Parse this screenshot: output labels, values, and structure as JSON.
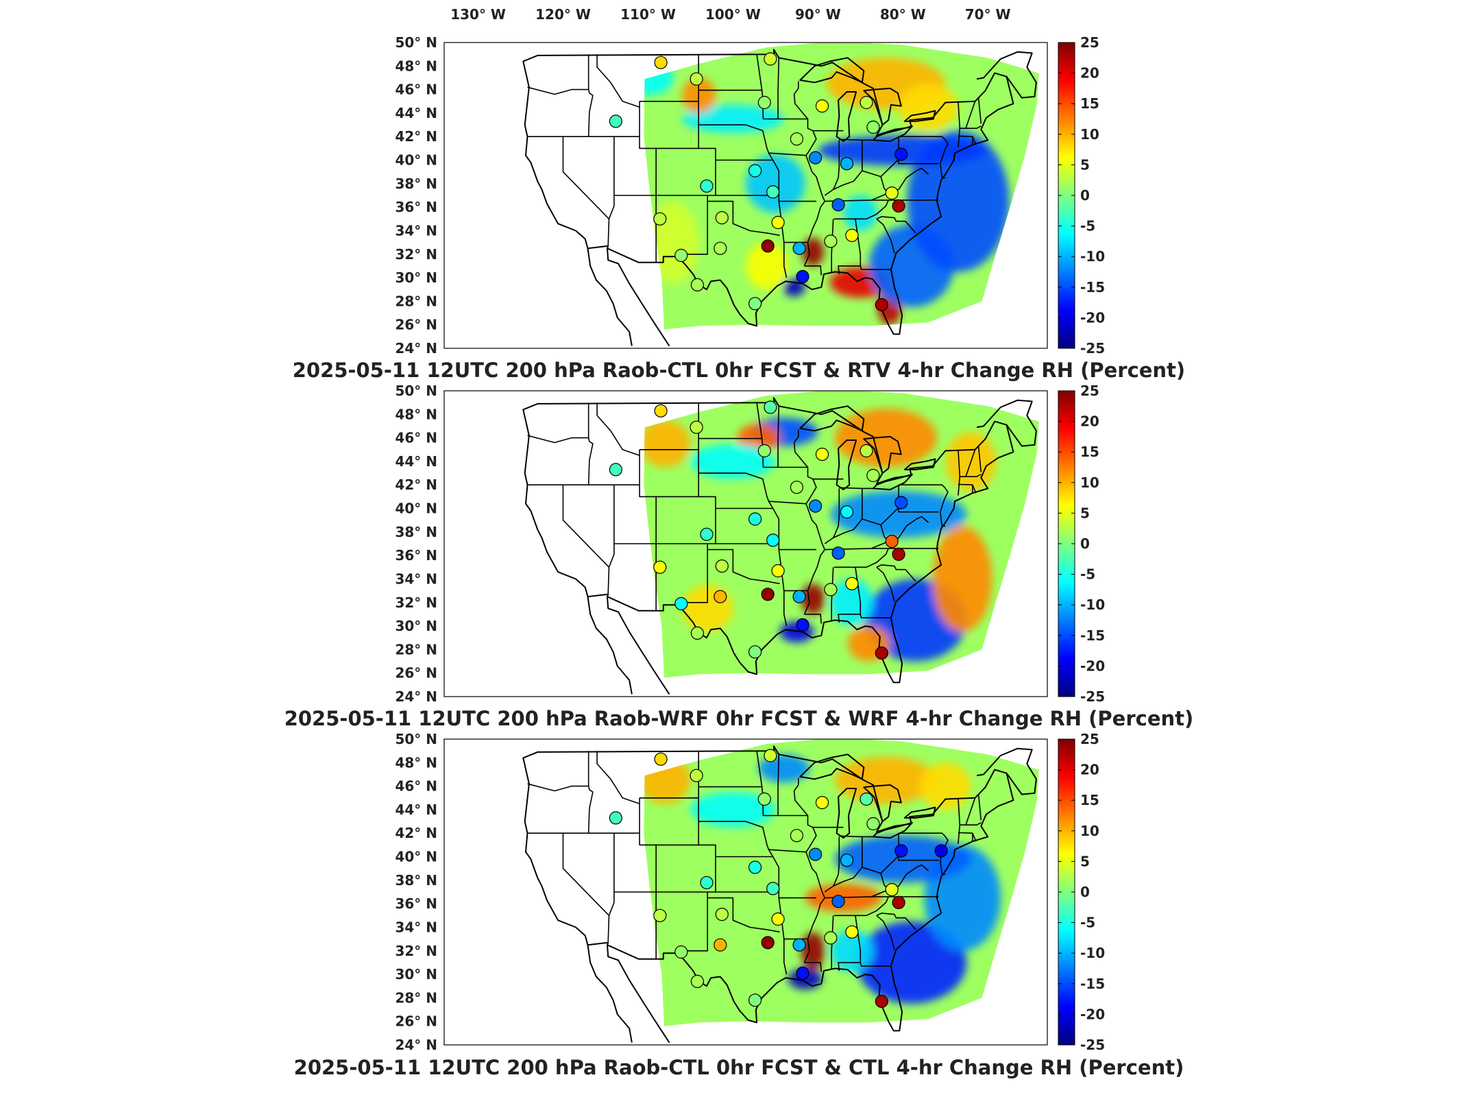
{
  "figure": {
    "top_longitude_labels": [
      "130° W",
      "120° W",
      "110° W",
      "100° W",
      "90° W",
      "80° W",
      "70° W"
    ],
    "latitude_labels": [
      "50° N",
      "48° N",
      "46° N",
      "44° N",
      "42° N",
      "40° N",
      "38° N",
      "36° N",
      "34° N",
      "32° N",
      "30° N",
      "28° N",
      "26° N",
      "24° N"
    ],
    "colorbar_ticks": [
      "25",
      "20",
      "15",
      "10",
      "5",
      "0",
      "-5",
      "-10",
      "-15",
      "-20",
      "-25"
    ],
    "colorbar_range": [
      -25,
      25
    ],
    "colormap": [
      "#00007f",
      "#0000ff",
      "#007fff",
      "#00ffff",
      "#7fff7f",
      "#ffff00",
      "#ff7f00",
      "#ff0000",
      "#7f0000"
    ]
  },
  "panels": [
    {
      "id": "top",
      "title": "2025-05-11 12UTC 200 hPa Raob-CTL 0hr FCST & RTV 4-hr Change RH (Percent)",
      "stations": [
        {
          "lon": -108.5,
          "lat": 48.3,
          "v": 8
        },
        {
          "lon": -104.3,
          "lat": 46.9,
          "v": 3
        },
        {
          "lon": -95.6,
          "lat": 48.6,
          "v": 4
        },
        {
          "lon": -113.8,
          "lat": 43.3,
          "v": -3
        },
        {
          "lon": -96.3,
          "lat": 44.9,
          "v": 1
        },
        {
          "lon": -89.5,
          "lat": 44.6,
          "v": 6
        },
        {
          "lon": -84.3,
          "lat": 44.9,
          "v": 3
        },
        {
          "lon": -83.5,
          "lat": 42.8,
          "v": 1
        },
        {
          "lon": -92.5,
          "lat": 41.8,
          "v": 2
        },
        {
          "lon": -90.3,
          "lat": 40.2,
          "v": -12
        },
        {
          "lon": -86.6,
          "lat": 39.7,
          "v": -10
        },
        {
          "lon": -80.2,
          "lat": 40.5,
          "v": -18
        },
        {
          "lon": -97.4,
          "lat": 39.1,
          "v": -5
        },
        {
          "lon": -103.1,
          "lat": 37.8,
          "v": -4
        },
        {
          "lon": -95.3,
          "lat": 37.3,
          "v": -3
        },
        {
          "lon": -87.6,
          "lat": 36.2,
          "v": -14
        },
        {
          "lon": -80.5,
          "lat": 36.1,
          "v": 23
        },
        {
          "lon": -81.3,
          "lat": 37.2,
          "v": 5
        },
        {
          "lon": -108.6,
          "lat": 35.0,
          "v": 3
        },
        {
          "lon": -101.3,
          "lat": 35.1,
          "v": 3
        },
        {
          "lon": -94.7,
          "lat": 34.7,
          "v": 6
        },
        {
          "lon": -86.0,
          "lat": 33.6,
          "v": 6
        },
        {
          "lon": -88.5,
          "lat": 33.1,
          "v": 2
        },
        {
          "lon": -92.2,
          "lat": 32.5,
          "v": -10
        },
        {
          "lon": -95.9,
          "lat": 32.7,
          "v": 24
        },
        {
          "lon": -101.5,
          "lat": 32.5,
          "v": 2
        },
        {
          "lon": -106.1,
          "lat": 31.9,
          "v": 1
        },
        {
          "lon": -104.2,
          "lat": 29.4,
          "v": 2
        },
        {
          "lon": -97.4,
          "lat": 27.8,
          "v": 0
        },
        {
          "lon": -91.8,
          "lat": 30.1,
          "v": -18
        },
        {
          "lon": -82.5,
          "lat": 27.7,
          "v": 23
        }
      ],
      "blobs": [
        {
          "lon": -90.6,
          "lat": 32.2,
          "sx": 1.3,
          "sy": 1.2,
          "a": 24
        },
        {
          "lon": -85.0,
          "lat": 29.6,
          "sx": 3.6,
          "sy": 1.3,
          "a": 20
        },
        {
          "lon": -81.6,
          "lat": 27.4,
          "sx": 1.4,
          "sy": 1.4,
          "a": 22
        },
        {
          "lon": -92.8,
          "lat": 29.2,
          "sx": 1.3,
          "sy": 0.8,
          "a": -22
        },
        {
          "lon": -79.0,
          "lat": 31.0,
          "sx": 5.0,
          "sy": 3.5,
          "a": -14
        },
        {
          "lon": -73.5,
          "lat": 36.5,
          "sx": 6.0,
          "sy": 6.0,
          "a": -15
        },
        {
          "lon": -80.0,
          "lat": 40.8,
          "sx": 10.0,
          "sy": 1.3,
          "a": -16
        },
        {
          "lon": -95.0,
          "lat": 38.0,
          "sx": 3.5,
          "sy": 2.5,
          "a": -9
        },
        {
          "lon": -85.0,
          "lat": 35.5,
          "sx": 2.0,
          "sy": 1.5,
          "a": -8
        },
        {
          "lon": -82.0,
          "lat": 46.5,
          "sx": 7.0,
          "sy": 2.2,
          "a": 10
        },
        {
          "lon": -77.0,
          "lat": 44.5,
          "sx": 3.5,
          "sy": 2.0,
          "a": 8
        },
        {
          "lon": -107.0,
          "lat": 33.0,
          "sx": 3.0,
          "sy": 3.5,
          "a": 4
        },
        {
          "lon": -110.0,
          "lat": 47.0,
          "sx": 3.0,
          "sy": 1.5,
          "a": -6
        },
        {
          "lon": -100.0,
          "lat": 43.5,
          "sx": 6.0,
          "sy": 1.2,
          "a": -7
        },
        {
          "lon": -96.0,
          "lat": 31.0,
          "sx": 2.5,
          "sy": 2.0,
          "a": 6
        },
        {
          "lon": -104.0,
          "lat": 45.5,
          "sx": 2.0,
          "sy": 1.5,
          "a": 12
        }
      ]
    },
    {
      "id": "middle",
      "title": "2025-05-11 12UTC 200 hPa Raob-WRF 0hr FCST & WRF 4-hr Change RH (Percent)",
      "stations": [
        {
          "lon": -108.5,
          "lat": 48.3,
          "v": 8
        },
        {
          "lon": -104.3,
          "lat": 46.9,
          "v": 3
        },
        {
          "lon": -95.6,
          "lat": 48.6,
          "v": -2
        },
        {
          "lon": -113.8,
          "lat": 43.3,
          "v": -3
        },
        {
          "lon": -96.3,
          "lat": 44.9,
          "v": 1
        },
        {
          "lon": -89.5,
          "lat": 44.6,
          "v": 6
        },
        {
          "lon": -84.3,
          "lat": 44.9,
          "v": 3
        },
        {
          "lon": -83.5,
          "lat": 42.8,
          "v": 2
        },
        {
          "lon": -92.5,
          "lat": 41.8,
          "v": 2
        },
        {
          "lon": -90.3,
          "lat": 40.2,
          "v": -12
        },
        {
          "lon": -86.6,
          "lat": 39.7,
          "v": -6
        },
        {
          "lon": -80.2,
          "lat": 40.5,
          "v": -15
        },
        {
          "lon": -97.4,
          "lat": 39.1,
          "v": -5
        },
        {
          "lon": -103.1,
          "lat": 37.8,
          "v": -4
        },
        {
          "lon": -95.3,
          "lat": 37.3,
          "v": -6
        },
        {
          "lon": -87.6,
          "lat": 36.2,
          "v": -14
        },
        {
          "lon": -80.5,
          "lat": 36.1,
          "v": 23
        },
        {
          "lon": -81.3,
          "lat": 37.2,
          "v": 14
        },
        {
          "lon": -108.6,
          "lat": 35.0,
          "v": 6
        },
        {
          "lon": -101.3,
          "lat": 35.1,
          "v": 3
        },
        {
          "lon": -94.7,
          "lat": 34.7,
          "v": 6
        },
        {
          "lon": -86.0,
          "lat": 33.6,
          "v": 6
        },
        {
          "lon": -88.5,
          "lat": 33.1,
          "v": 2
        },
        {
          "lon": -92.2,
          "lat": 32.5,
          "v": -10
        },
        {
          "lon": -95.9,
          "lat": 32.7,
          "v": 24
        },
        {
          "lon": -101.5,
          "lat": 32.5,
          "v": 10
        },
        {
          "lon": -106.1,
          "lat": 31.9,
          "v": -6
        },
        {
          "lon": -104.2,
          "lat": 29.4,
          "v": 2
        },
        {
          "lon": -97.4,
          "lat": 27.8,
          "v": 0
        },
        {
          "lon": -91.8,
          "lat": 30.1,
          "v": -18
        },
        {
          "lon": -82.5,
          "lat": 27.7,
          "v": 23
        }
      ],
      "blobs": [
        {
          "lon": -90.6,
          "lat": 32.3,
          "sx": 1.4,
          "sy": 1.3,
          "a": 24
        },
        {
          "lon": -92.5,
          "lat": 29.5,
          "sx": 2.0,
          "sy": 0.9,
          "a": -20
        },
        {
          "lon": -78.5,
          "lat": 30.5,
          "sx": 6.0,
          "sy": 3.5,
          "a": -16
        },
        {
          "lon": -73.0,
          "lat": 34.0,
          "sx": 3.5,
          "sy": 4.5,
          "a": 12
        },
        {
          "lon": -80.5,
          "lat": 39.5,
          "sx": 8.0,
          "sy": 2.0,
          "a": -12
        },
        {
          "lon": -82.0,
          "lat": 46.0,
          "sx": 6.0,
          "sy": 2.5,
          "a": 12
        },
        {
          "lon": -72.0,
          "lat": 44.0,
          "sx": 3.0,
          "sy": 2.5,
          "a": 9
        },
        {
          "lon": -94.0,
          "lat": 46.5,
          "sx": 4.0,
          "sy": 1.2,
          "a": -15
        },
        {
          "lon": -97.0,
          "lat": 46.0,
          "sx": 2.5,
          "sy": 1.2,
          "a": 14
        },
        {
          "lon": -112.0,
          "lat": 33.5,
          "sx": 2.5,
          "sy": 3.5,
          "a": 14
        },
        {
          "lon": -103.0,
          "lat": 31.5,
          "sx": 3.0,
          "sy": 2.0,
          "a": 8
        },
        {
          "lon": -86.0,
          "lat": 32.0,
          "sx": 2.5,
          "sy": 2.0,
          "a": -7
        },
        {
          "lon": -84.0,
          "lat": 28.5,
          "sx": 2.5,
          "sy": 1.5,
          "a": 12
        },
        {
          "lon": -100.0,
          "lat": 44.0,
          "sx": 5.0,
          "sy": 1.5,
          "a": -6
        },
        {
          "lon": -108.0,
          "lat": 45.5,
          "sx": 3.0,
          "sy": 2.0,
          "a": 10
        }
      ]
    },
    {
      "id": "bottom",
      "title": "2025-05-11 12UTC 200 hPa Raob-CTL 0hr FCST & CTL 4-hr Change RH (Percent)",
      "stations": [
        {
          "lon": -108.5,
          "lat": 48.3,
          "v": 8
        },
        {
          "lon": -104.3,
          "lat": 46.9,
          "v": 3
        },
        {
          "lon": -95.6,
          "lat": 48.6,
          "v": 4
        },
        {
          "lon": -113.8,
          "lat": 43.3,
          "v": -3
        },
        {
          "lon": -96.3,
          "lat": 44.9,
          "v": 1
        },
        {
          "lon": -89.5,
          "lat": 44.6,
          "v": 6
        },
        {
          "lon": -84.3,
          "lat": 44.9,
          "v": -2
        },
        {
          "lon": -83.5,
          "lat": 42.8,
          "v": 1
        },
        {
          "lon": -92.5,
          "lat": 41.8,
          "v": 2
        },
        {
          "lon": -90.3,
          "lat": 40.2,
          "v": -12
        },
        {
          "lon": -86.6,
          "lat": 39.7,
          "v": -10
        },
        {
          "lon": -80.2,
          "lat": 40.5,
          "v": -18
        },
        {
          "lon": -97.4,
          "lat": 39.1,
          "v": -5
        },
        {
          "lon": -103.1,
          "lat": 37.8,
          "v": -4
        },
        {
          "lon": -95.3,
          "lat": 37.3,
          "v": -3
        },
        {
          "lon": -87.6,
          "lat": 36.2,
          "v": -14
        },
        {
          "lon": -80.5,
          "lat": 36.1,
          "v": 23
        },
        {
          "lon": -81.3,
          "lat": 37.2,
          "v": 5
        },
        {
          "lon": -108.6,
          "lat": 35.0,
          "v": 3
        },
        {
          "lon": -101.3,
          "lat": 35.1,
          "v": 3
        },
        {
          "lon": -94.7,
          "lat": 34.7,
          "v": 6
        },
        {
          "lon": -86.0,
          "lat": 33.6,
          "v": 6
        },
        {
          "lon": -88.5,
          "lat": 33.1,
          "v": 2
        },
        {
          "lon": -92.2,
          "lat": 32.5,
          "v": -10
        },
        {
          "lon": -95.9,
          "lat": 32.7,
          "v": 24
        },
        {
          "lon": -101.5,
          "lat": 32.5,
          "v": 10
        },
        {
          "lon": -106.1,
          "lat": 31.9,
          "v": 1
        },
        {
          "lon": -104.2,
          "lat": 29.4,
          "v": 2
        },
        {
          "lon": -97.4,
          "lat": 27.8,
          "v": 0
        },
        {
          "lon": -91.8,
          "lat": 30.1,
          "v": -18
        },
        {
          "lon": -82.5,
          "lat": 27.7,
          "v": 23
        },
        {
          "lon": -75.5,
          "lat": 40.5,
          "v": -20
        }
      ],
      "blobs": [
        {
          "lon": -90.6,
          "lat": 32.0,
          "sx": 1.4,
          "sy": 1.6,
          "a": 24
        },
        {
          "lon": -91.5,
          "lat": 29.6,
          "sx": 2.0,
          "sy": 0.9,
          "a": -22
        },
        {
          "lon": -79.0,
          "lat": 31.0,
          "sx": 6.5,
          "sy": 3.5,
          "a": -17
        },
        {
          "lon": -73.0,
          "lat": 36.5,
          "sx": 4.5,
          "sy": 4.5,
          "a": -12
        },
        {
          "lon": -80.0,
          "lat": 39.8,
          "sx": 8.0,
          "sy": 2.0,
          "a": -14
        },
        {
          "lon": -82.0,
          "lat": 46.5,
          "sx": 6.0,
          "sy": 2.0,
          "a": 10
        },
        {
          "lon": -87.0,
          "lat": 36.5,
          "sx": 4.5,
          "sy": 1.2,
          "a": 14
        },
        {
          "lon": -94.0,
          "lat": 47.5,
          "sx": 3.0,
          "sy": 1.2,
          "a": -12
        },
        {
          "lon": -113.0,
          "lat": 33.0,
          "sx": 2.5,
          "sy": 3.5,
          "a": 14
        },
        {
          "lon": -100.0,
          "lat": 44.0,
          "sx": 5.0,
          "sy": 1.5,
          "a": -6
        },
        {
          "lon": -86.0,
          "lat": 32.0,
          "sx": 2.5,
          "sy": 1.8,
          "a": -8
        },
        {
          "lon": -75.0,
          "lat": 46.0,
          "sx": 3.0,
          "sy": 2.0,
          "a": 8
        },
        {
          "lon": -108.0,
          "lat": 46.5,
          "sx": 3.0,
          "sy": 2.0,
          "a": 10
        }
      ]
    }
  ]
}
